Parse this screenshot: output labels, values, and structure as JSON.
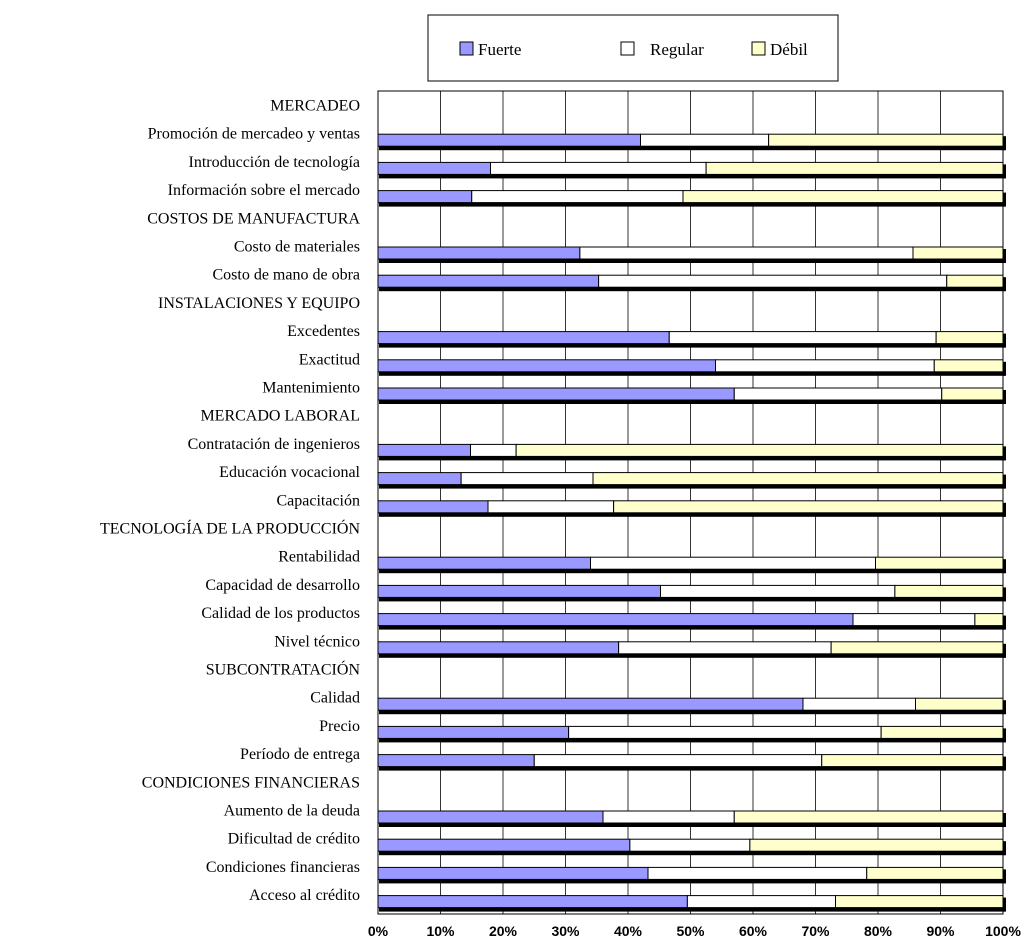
{
  "chart_data": {
    "type": "bar",
    "orientation": "horizontal",
    "stacked": true,
    "xlim": [
      0,
      100
    ],
    "xticks": [
      "0%",
      "10%",
      "20%",
      "30%",
      "40%",
      "50%",
      "60%",
      "70%",
      "80%",
      "90%",
      "100%"
    ],
    "legend": {
      "position": "top",
      "entries": [
        "Fuerte",
        "Regular",
        "Débil"
      ]
    },
    "series": [
      {
        "name": "Fuerte",
        "color": "#9999ff"
      },
      {
        "name": "Regular",
        "color": "#ffffff"
      },
      {
        "name": "Débil",
        "color": "#ffffcc"
      }
    ],
    "grid": true,
    "rows": [
      {
        "label": "MERCADEO",
        "header": true
      },
      {
        "label": "Promoción de mercadeo y ventas",
        "values": [
          42,
          20.5,
          37.5
        ]
      },
      {
        "label": "Introducción de tecnología",
        "values": [
          18,
          34.5,
          47.5
        ]
      },
      {
        "label": "Información sobre el mercado",
        "values": [
          15,
          33.8,
          51.2
        ]
      },
      {
        "label": "COSTOS DE MANUFACTURA",
        "header": true
      },
      {
        "label": "Costo de materiales",
        "values": [
          32.3,
          53.3,
          14.4
        ]
      },
      {
        "label": "Costo de mano de obra",
        "values": [
          35.3,
          55.7,
          9
        ]
      },
      {
        "label": "INSTALACIONES Y EQUIPO",
        "header": true
      },
      {
        "label": "Excedentes",
        "values": [
          46.6,
          42.7,
          10.7
        ]
      },
      {
        "label": "Exactitud",
        "values": [
          54,
          35,
          11
        ]
      },
      {
        "label": "Mantenimiento",
        "values": [
          57,
          33.2,
          9.8
        ]
      },
      {
        "label": "MERCADO LABORAL",
        "header": true
      },
      {
        "label": "Contratación de ingenieros",
        "values": [
          14.8,
          7.3,
          77.9
        ]
      },
      {
        "label": "Educación vocacional",
        "values": [
          13.3,
          21.1,
          65.6
        ]
      },
      {
        "label": "Capacitación",
        "values": [
          17.6,
          20.1,
          62.3
        ]
      },
      {
        "label": "TECNOLOGÍA DE LA PRODUCCIÓN",
        "header": true
      },
      {
        "label": "Rentabilidad",
        "values": [
          34,
          45.6,
          20.4
        ]
      },
      {
        "label": "Capacidad de desarrollo",
        "values": [
          45.2,
          37.5,
          17.3
        ]
      },
      {
        "label": "Calidad de los productos",
        "values": [
          76,
          19.5,
          4.5
        ]
      },
      {
        "label": "Nivel técnico",
        "values": [
          38.5,
          34,
          27.5
        ]
      },
      {
        "label": "SUBCONTRATACIÓN",
        "header": true
      },
      {
        "label": "Calidad",
        "values": [
          68,
          18,
          14
        ]
      },
      {
        "label": "Precio",
        "values": [
          30.5,
          50,
          19.5
        ]
      },
      {
        "label": "Período de entrega",
        "values": [
          25,
          46,
          29
        ]
      },
      {
        "label": "CONDICIONES FINANCIERAS",
        "header": true
      },
      {
        "label": "Aumento de la deuda",
        "values": [
          36,
          21,
          43
        ]
      },
      {
        "label": "Dificultad de crédito",
        "values": [
          40.3,
          19.2,
          40.5
        ]
      },
      {
        "label": "Condiciones financieras",
        "values": [
          43.2,
          35,
          21.8
        ]
      },
      {
        "label": "Acceso al crédito",
        "values": [
          49.5,
          23.7,
          26.8
        ]
      }
    ]
  }
}
